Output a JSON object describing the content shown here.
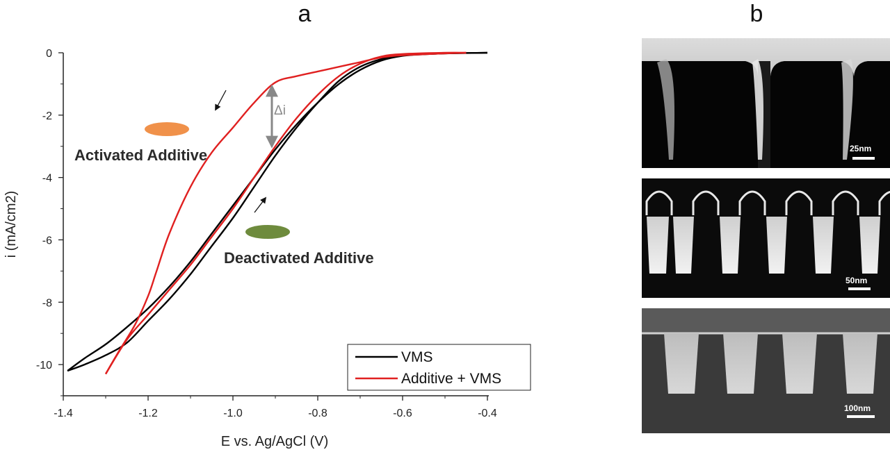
{
  "panels": {
    "a": "a",
    "b": "b"
  },
  "chart_data": {
    "type": "line",
    "xlabel": "E vs. Ag/AgCl (V)",
    "ylabel": "i (mA/cm2)",
    "xlim": [
      -1.4,
      -0.4
    ],
    "ylim": [
      -11,
      0
    ],
    "x_ticks": [
      "-1.4",
      "-1.2",
      "-1.0",
      "-0.8",
      "-0.6",
      "-0.4"
    ],
    "y_ticks": [
      "0",
      "-2",
      "-4",
      "-6",
      "-8",
      "-10"
    ],
    "grid": false,
    "legend_position": "bottom-right",
    "series": [
      {
        "name": "VMS",
        "color": "#000000",
        "sweeps": [
          [
            [
              -0.4,
              0
            ],
            [
              -0.5,
              -0.02
            ],
            [
              -0.55,
              -0.05
            ],
            [
              -0.6,
              -0.1
            ],
            [
              -0.65,
              -0.25
            ],
            [
              -0.7,
              -0.55
            ],
            [
              -0.75,
              -1.0
            ],
            [
              -0.8,
              -1.6
            ],
            [
              -0.85,
              -2.3
            ],
            [
              -0.9,
              -3.1
            ],
            [
              -0.95,
              -4.0
            ],
            [
              -1.0,
              -4.9
            ],
            [
              -1.05,
              -5.8
            ],
            [
              -1.1,
              -6.7
            ],
            [
              -1.15,
              -7.5
            ],
            [
              -1.2,
              -8.2
            ],
            [
              -1.25,
              -8.8
            ],
            [
              -1.3,
              -9.35
            ],
            [
              -1.35,
              -9.8
            ],
            [
              -1.39,
              -10.2
            ]
          ],
          [
            [
              -1.39,
              -10.2
            ],
            [
              -1.35,
              -10.0
            ],
            [
              -1.3,
              -9.7
            ],
            [
              -1.25,
              -9.3
            ],
            [
              -1.2,
              -8.6
            ],
            [
              -1.15,
              -7.9
            ],
            [
              -1.1,
              -7.1
            ],
            [
              -1.05,
              -6.2
            ],
            [
              -1.0,
              -5.3
            ],
            [
              -0.95,
              -4.3
            ],
            [
              -0.9,
              -3.3
            ],
            [
              -0.85,
              -2.4
            ],
            [
              -0.8,
              -1.6
            ],
            [
              -0.75,
              -0.9
            ],
            [
              -0.7,
              -0.45
            ],
            [
              -0.65,
              -0.2
            ],
            [
              -0.6,
              -0.08
            ],
            [
              -0.5,
              -0.02
            ],
            [
              -0.4,
              0
            ]
          ]
        ]
      },
      {
        "name": "Additive + VMS",
        "color": "#e02020",
        "sweeps": [
          [
            [
              -0.45,
              0
            ],
            [
              -0.5,
              -0.02
            ],
            [
              -0.55,
              -0.05
            ],
            [
              -0.6,
              -0.08
            ],
            [
              -0.65,
              -0.15
            ],
            [
              -0.7,
              -0.3
            ],
            [
              -0.75,
              -0.45
            ],
            [
              -0.8,
              -0.6
            ],
            [
              -0.85,
              -0.75
            ],
            [
              -0.9,
              -0.95
            ],
            [
              -0.95,
              -1.6
            ],
            [
              -1.0,
              -2.4
            ],
            [
              -1.05,
              -3.2
            ],
            [
              -1.1,
              -4.3
            ],
            [
              -1.15,
              -5.8
            ],
            [
              -1.18,
              -7.0
            ],
            [
              -1.2,
              -7.8
            ],
            [
              -1.23,
              -8.7
            ],
            [
              -1.27,
              -9.6
            ],
            [
              -1.3,
              -10.3
            ]
          ],
          [
            [
              -1.3,
              -10.3
            ],
            [
              -1.25,
              -9.2
            ],
            [
              -1.2,
              -8.4
            ],
            [
              -1.15,
              -7.6
            ],
            [
              -1.1,
              -6.8
            ],
            [
              -1.05,
              -5.9
            ],
            [
              -1.0,
              -5.0
            ],
            [
              -0.95,
              -4.0
            ],
            [
              -0.9,
              -3.0
            ],
            [
              -0.85,
              -2.1
            ],
            [
              -0.8,
              -1.35
            ],
            [
              -0.75,
              -0.75
            ],
            [
              -0.7,
              -0.35
            ],
            [
              -0.65,
              -0.12
            ],
            [
              -0.6,
              -0.04
            ],
            [
              -0.5,
              0
            ],
            [
              -0.45,
              0
            ]
          ]
        ]
      }
    ],
    "annotations": {
      "activated": "Activated Additive",
      "deactivated": "Deactivated Additive",
      "delta": "Δi"
    },
    "marker_colors": {
      "activated": "#f0914a",
      "deactivated": "#6e8b3d"
    }
  },
  "sem_images": {
    "top_scale": "25nm",
    "middle_scale": "50nm",
    "bottom_scale": "100nm"
  }
}
